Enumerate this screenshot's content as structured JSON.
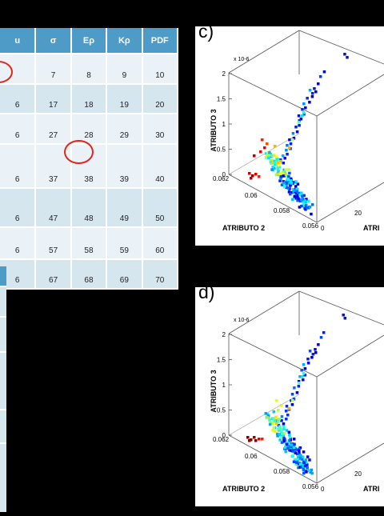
{
  "table": {
    "headers": [
      "u",
      "σ",
      "Eρ",
      "Kρ",
      "PDF"
    ],
    "rows": [
      [
        "",
        "7",
        "8",
        "9",
        "10"
      ],
      [
        "6",
        "17",
        "18",
        "19",
        "20"
      ],
      [
        "6",
        "27",
        "28",
        "29",
        "30"
      ],
      [
        "6",
        "37",
        "38",
        "39",
        "40"
      ],
      [
        "6",
        "47",
        "48",
        "49",
        "50"
      ],
      [
        "6",
        "57",
        "58",
        "59",
        "60"
      ],
      [
        "6",
        "67",
        "68",
        "69",
        "70"
      ]
    ]
  },
  "panels": [
    {
      "label": "c)"
    },
    {
      "label": "d)"
    }
  ],
  "chart_data": [
    {
      "type": "scatter",
      "panel": "c)",
      "zlabel": "ATRIBUTO 3",
      "ylabel": "ATRIBUTO 2",
      "xlabel": "ATRI",
      "z_multiplier": "x 10^-6",
      "z_ticks": [
        "0",
        "0.5",
        "1",
        "1.5",
        "2"
      ],
      "y_ticks": [
        "0.062",
        "0.06",
        "0.058",
        "0.056"
      ],
      "x_ticks": [
        "0",
        "20"
      ],
      "colormap": "jet"
    },
    {
      "type": "scatter",
      "panel": "d)",
      "zlabel": "ATRIBUTO 3",
      "ylabel": "ATRIBUTO 2",
      "xlabel": "ATRI",
      "z_multiplier": "x 10^-6",
      "z_ticks": [
        "0",
        "0.5",
        "1",
        "1.5",
        "2"
      ],
      "y_ticks": [
        "0.062",
        "0.06",
        "0.058",
        "0.056"
      ],
      "x_ticks": [
        "0",
        "20"
      ],
      "colormap": "jet"
    }
  ]
}
